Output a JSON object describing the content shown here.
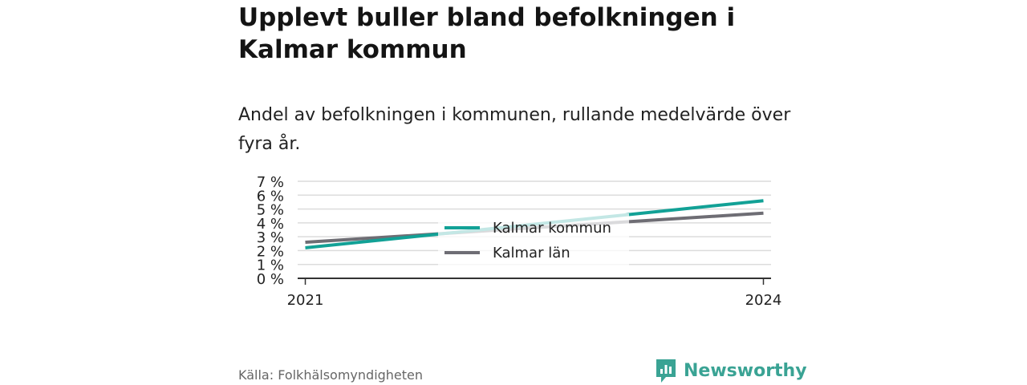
{
  "title": "Upplevt buller bland befolkningen i Kalmar kommun",
  "subtitle": "Andel av befolkningen i kommunen, rullande medelvärde över fyra år.",
  "source": "Källa: Folkhälsomyndigheten",
  "brand": {
    "name": "Newsworthy",
    "icon": "newsworthy-logo-icon",
    "color": "#3aa394"
  },
  "chart_data": {
    "type": "line",
    "title": "Upplevt buller bland befolkningen i Kalmar kommun",
    "subtitle": "Andel av befolkningen i kommunen, rullande medelvärde över fyra år.",
    "x": [
      2021,
      2024
    ],
    "x_tick_labels": [
      "2021",
      "2024"
    ],
    "xlim": [
      2020.95,
      2024.05
    ],
    "ylim": [
      0,
      7
    ],
    "y_ticks": [
      0,
      1,
      2,
      3,
      4,
      5,
      6,
      7
    ],
    "y_tick_labels": [
      "0 %",
      "1 %",
      "2 %",
      "3 %",
      "4 %",
      "5 %",
      "6 %",
      "7 %"
    ],
    "series": [
      {
        "name": "Kalmar kommun",
        "color": "#12a196",
        "values": [
          2.2,
          5.6
        ]
      },
      {
        "name": "Kalmar län",
        "color": "#6e6d74",
        "values": [
          2.6,
          4.7
        ]
      }
    ],
    "legend": "center",
    "grid": true
  }
}
